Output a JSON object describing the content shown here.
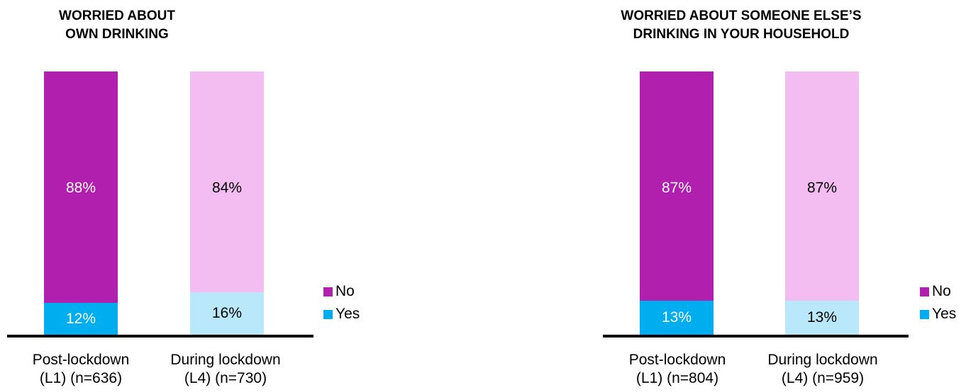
{
  "chart_data": [
    {
      "type": "bar",
      "stacked": true,
      "title": "WORRIED ABOUT\nOWN DRINKING",
      "categories": [
        "Post-lockdown\n(L1) (n=636)",
        "During lockdown\n(L4) (n=730)"
      ],
      "series": [
        {
          "name": "Yes",
          "values": [
            12,
            16
          ],
          "labels": [
            "12%",
            "16%"
          ]
        },
        {
          "name": "No",
          "values": [
            88,
            84
          ],
          "labels": [
            "88%",
            "84%"
          ]
        }
      ],
      "ylim": [
        0,
        100
      ],
      "legend_position": "right-bottom"
    },
    {
      "type": "bar",
      "stacked": true,
      "title": "WORRIED ABOUT SOMEONE ELSE’S\nDRINKING IN YOUR HOUSEHOLD",
      "categories": [
        "Post-lockdown\n(L1) (n=804)",
        "During lockdown\n(L4) (n=959)"
      ],
      "series": [
        {
          "name": "Yes",
          "values": [
            13,
            13
          ],
          "labels": [
            "13%",
            "13%"
          ]
        },
        {
          "name": "No",
          "values": [
            87,
            87
          ],
          "labels": [
            "87%",
            "87%"
          ]
        }
      ],
      "ylim": [
        0,
        100
      ],
      "legend_position": "right-bottom"
    }
  ],
  "colors": {
    "no_l1": "#b01fae",
    "no_l4": "#f4bdf1",
    "yes_l1": "#00aeef",
    "yes_l4": "#b8e8f9",
    "legend_no": "#b01fae",
    "legend_yes": "#00aeef",
    "label_on_dark": "#ffffff",
    "label_on_light": "#000000"
  }
}
